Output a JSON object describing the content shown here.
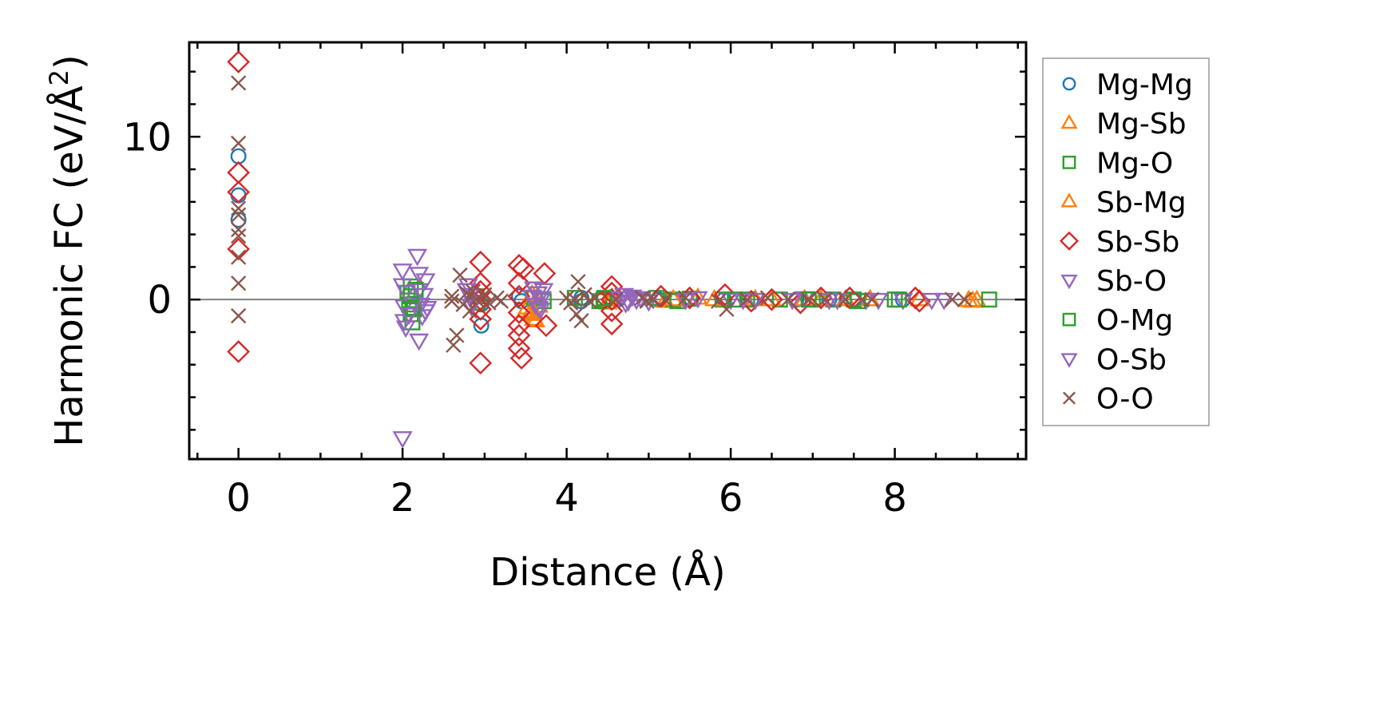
{
  "chart_data": {
    "type": "scatter",
    "xlabel": "Distance (Å)",
    "ylabel": "Harmonic FC (eV/Å",
    "ylabel_superscript": "2",
    "ylabel_close": ")",
    "xlim": [
      -0.6,
      9.6
    ],
    "ylim": [
      -9.8,
      15.8
    ],
    "x_ticks": [
      0,
      2,
      4,
      6,
      8
    ],
    "x_tick_labels": [
      "0",
      "2",
      "4",
      "6",
      "8"
    ],
    "y_ticks": [
      0,
      10
    ],
    "y_tick_labels": [
      "0",
      "10"
    ],
    "x_minor_step": 0.5,
    "y_minor_step": 2,
    "ticks_direction": "in",
    "ticks_on_all_sides": true,
    "grid": false,
    "zero_line": true,
    "zero_line_color": "#808080",
    "legend_position": "outside-right",
    "series": [
      {
        "name": "Mg-Mg",
        "marker": "circle",
        "color": "#1f77b4",
        "points": [
          [
            0,
            8.8
          ],
          [
            0,
            6.4
          ],
          [
            0,
            4.9
          ],
          [
            2.96,
            -1.6
          ],
          [
            2.96,
            -0.3
          ],
          [
            3.42,
            0.2
          ],
          [
            3.45,
            -0.1
          ],
          [
            4.18,
            0.1
          ],
          [
            4.18,
            -0.1
          ],
          [
            4.62,
            0.0
          ],
          [
            5.12,
            0.0
          ],
          [
            5.52,
            0.05
          ],
          [
            5.92,
            0.0
          ],
          [
            6.25,
            0.0
          ],
          [
            6.8,
            0.0
          ],
          [
            7.2,
            0.0
          ],
          [
            7.5,
            0.0
          ],
          [
            8.1,
            0.0
          ]
        ]
      },
      {
        "name": "Mg-Sb",
        "marker": "triangle-up",
        "color": "#ff7f0e",
        "points": [
          [
            3.5,
            -0.7
          ],
          [
            3.55,
            -0.9
          ],
          [
            3.6,
            -1.2
          ],
          [
            3.62,
            -1.3
          ],
          [
            3.58,
            0.3
          ],
          [
            3.66,
            -0.4
          ],
          [
            4.5,
            -0.2
          ],
          [
            4.55,
            0.1
          ],
          [
            5.2,
            -0.1
          ],
          [
            5.6,
            0.1
          ],
          [
            6.3,
            0.0
          ],
          [
            6.9,
            0.0
          ],
          [
            7.4,
            0.0
          ],
          [
            8.3,
            0.0
          ],
          [
            8.95,
            -0.1
          ],
          [
            9.0,
            -0.05
          ]
        ]
      },
      {
        "name": "Mg-O",
        "marker": "square",
        "color": "#2ca02c",
        "points": [
          [
            2.06,
            0.4
          ],
          [
            2.08,
            -0.3
          ],
          [
            2.1,
            -0.9
          ],
          [
            2.12,
            -1.4
          ],
          [
            2.1,
            0.8
          ],
          [
            2.14,
            -0.6
          ],
          [
            2.9,
            0.2
          ],
          [
            2.92,
            -0.2
          ],
          [
            3.6,
            0.1
          ],
          [
            3.72,
            -0.1
          ],
          [
            4.1,
            0.1
          ],
          [
            4.4,
            -0.1
          ],
          [
            4.45,
            0.0
          ],
          [
            5.1,
            0.1
          ],
          [
            5.3,
            0.0
          ],
          [
            5.5,
            0.05
          ],
          [
            5.9,
            0.0
          ],
          [
            6.2,
            0.0
          ],
          [
            6.6,
            0.0
          ],
          [
            7.0,
            0.0
          ],
          [
            7.25,
            0.0
          ],
          [
            7.5,
            0.0
          ],
          [
            8.0,
            0.0
          ],
          [
            9.15,
            0.0
          ]
        ]
      },
      {
        "name": "Sb-Mg",
        "marker": "triangle-up",
        "color": "#ff7f0e",
        "points": [
          [
            3.52,
            -0.5
          ],
          [
            3.6,
            -0.8
          ],
          [
            3.64,
            0.1
          ],
          [
            4.52,
            0.0
          ],
          [
            5.3,
            0.0
          ],
          [
            5.8,
            0.0
          ],
          [
            6.5,
            0.0
          ],
          [
            7.1,
            0.0
          ],
          [
            7.7,
            0.0
          ],
          [
            8.9,
            -0.05
          ]
        ]
      },
      {
        "name": "Sb-Sb",
        "marker": "diamond",
        "color": "#d62728",
        "points": [
          [
            0,
            14.6
          ],
          [
            0,
            7.8
          ],
          [
            0,
            6.6
          ],
          [
            0,
            3.1
          ],
          [
            0,
            -3.2
          ],
          [
            2.95,
            2.3
          ],
          [
            2.95,
            1.0
          ],
          [
            2.95,
            0.5
          ],
          [
            2.95,
            0.0
          ],
          [
            2.95,
            -0.6
          ],
          [
            2.95,
            -1.2
          ],
          [
            2.95,
            -3.9
          ],
          [
            3.42,
            2.1
          ],
          [
            3.42,
            1.0
          ],
          [
            3.42,
            0.2
          ],
          [
            3.42,
            -0.8
          ],
          [
            3.42,
            -1.6
          ],
          [
            3.42,
            -2.2
          ],
          [
            3.42,
            -3.0
          ],
          [
            3.45,
            -3.6
          ],
          [
            3.47,
            1.9
          ],
          [
            3.73,
            1.6
          ],
          [
            3.75,
            -1.6
          ],
          [
            4.55,
            0.8
          ],
          [
            4.55,
            0.4
          ],
          [
            4.55,
            0.0
          ],
          [
            4.55,
            -0.7
          ],
          [
            4.55,
            -1.5
          ],
          [
            5.15,
            0.2
          ],
          [
            5.5,
            0.1
          ],
          [
            5.93,
            0.3
          ],
          [
            6.25,
            -0.1
          ],
          [
            6.5,
            0.0
          ],
          [
            6.85,
            -0.2
          ],
          [
            7.1,
            0.1
          ],
          [
            7.45,
            0.1
          ],
          [
            8.25,
            0.1
          ],
          [
            8.3,
            -0.1
          ]
        ]
      },
      {
        "name": "Sb-O",
        "marker": "triangle-down",
        "color": "#9467bd",
        "points": [
          [
            2.0,
            1.8
          ],
          [
            2.0,
            0.9
          ],
          [
            2.02,
            -0.4
          ],
          [
            2.02,
            -1.3
          ],
          [
            2.04,
            -1.7
          ],
          [
            2.18,
            2.7
          ],
          [
            2.2,
            1.6
          ],
          [
            2.2,
            0.6
          ],
          [
            2.22,
            -0.3
          ],
          [
            2.24,
            -1.0
          ],
          [
            2.2,
            -2.5
          ],
          [
            2.28,
            1.2
          ],
          [
            2.28,
            -0.7
          ],
          [
            2.8,
            0.9
          ],
          [
            2.82,
            0.3
          ],
          [
            2.84,
            -0.4
          ],
          [
            3.6,
            0.7
          ],
          [
            3.62,
            -0.3
          ],
          [
            3.65,
            0.4
          ],
          [
            3.68,
            -0.6
          ],
          [
            3.7,
            0.1
          ],
          [
            4.7,
            0.3
          ],
          [
            4.72,
            -0.2
          ],
          [
            4.8,
            0.2
          ],
          [
            4.9,
            0.1
          ],
          [
            5.0,
            -0.1
          ],
          [
            5.6,
            0.1
          ],
          [
            6.0,
            0.0
          ],
          [
            6.3,
            0.0
          ],
          [
            6.9,
            0.1
          ],
          [
            7.3,
            0.0
          ],
          [
            7.65,
            0.0
          ],
          [
            8.1,
            0.0
          ],
          [
            8.6,
            0.0
          ]
        ]
      },
      {
        "name": "O-Mg",
        "marker": "square",
        "color": "#2ca02c",
        "points": [
          [
            2.1,
            0.2
          ],
          [
            2.12,
            -0.5
          ],
          [
            2.16,
            0.6
          ],
          [
            4.46,
            0.1
          ],
          [
            5.35,
            -0.1
          ],
          [
            6.05,
            0.0
          ],
          [
            6.95,
            0.0
          ],
          [
            7.55,
            -0.1
          ],
          [
            8.05,
            0.0
          ]
        ]
      },
      {
        "name": "O-Sb",
        "marker": "triangle-down",
        "color": "#9467bd",
        "points": [
          [
            2.0,
            -8.5
          ],
          [
            2.04,
            0.5
          ],
          [
            2.08,
            -0.9
          ],
          [
            2.26,
            0.3
          ],
          [
            2.3,
            -0.5
          ],
          [
            2.78,
            0.6
          ],
          [
            2.86,
            -0.2
          ],
          [
            3.58,
            0.2
          ],
          [
            3.66,
            -0.5
          ],
          [
            3.72,
            0.6
          ],
          [
            4.65,
            0.1
          ],
          [
            4.75,
            -0.1
          ],
          [
            4.85,
            0.0
          ],
          [
            5.45,
            0.0
          ],
          [
            6.15,
            0.0
          ],
          [
            6.75,
            0.0
          ],
          [
            7.2,
            0.0
          ],
          [
            7.8,
            0.0
          ],
          [
            8.45,
            0.0
          ]
        ]
      },
      {
        "name": "O-O",
        "marker": "x",
        "color": "#8c564b",
        "points": [
          [
            0,
            13.3
          ],
          [
            0,
            9.6
          ],
          [
            0,
            5.6
          ],
          [
            0,
            5.2
          ],
          [
            0,
            4.3
          ],
          [
            0,
            3.9
          ],
          [
            0,
            2.6
          ],
          [
            0,
            1.0
          ],
          [
            0,
            -1.0
          ],
          [
            2.6,
            0.2
          ],
          [
            2.6,
            -0.1
          ],
          [
            2.62,
            -2.8
          ],
          [
            2.66,
            -2.2
          ],
          [
            2.7,
            1.5
          ],
          [
            2.74,
            -0.3
          ],
          [
            2.78,
            0.4
          ],
          [
            2.82,
            -0.7
          ],
          [
            2.86,
            0.5
          ],
          [
            2.9,
            0.0
          ],
          [
            3.0,
            0.3
          ],
          [
            3.05,
            -0.2
          ],
          [
            3.15,
            0.1
          ],
          [
            3.2,
            -0.1
          ],
          [
            4.0,
            0.1
          ],
          [
            4.05,
            -0.2
          ],
          [
            4.1,
            0.0
          ],
          [
            4.12,
            -0.9
          ],
          [
            4.14,
            1.1
          ],
          [
            4.18,
            -1.3
          ],
          [
            4.22,
            0.3
          ],
          [
            4.28,
            -0.1
          ],
          [
            4.35,
            0.1
          ],
          [
            4.6,
            0.0
          ],
          [
            4.92,
            0.1
          ],
          [
            4.98,
            -0.1
          ],
          [
            5.05,
            0.0
          ],
          [
            5.2,
            0.0
          ],
          [
            5.45,
            0.1
          ],
          [
            5.85,
            -0.1
          ],
          [
            5.95,
            -0.6
          ],
          [
            6.2,
            0.0
          ],
          [
            6.45,
            0.1
          ],
          [
            6.7,
            0.0
          ],
          [
            6.95,
            0.0
          ],
          [
            7.15,
            0.0
          ],
          [
            7.4,
            0.0
          ],
          [
            7.6,
            0.0
          ],
          [
            7.72,
            0.0
          ],
          [
            8.7,
            0.0
          ],
          [
            8.85,
            0.0
          ]
        ]
      }
    ]
  }
}
